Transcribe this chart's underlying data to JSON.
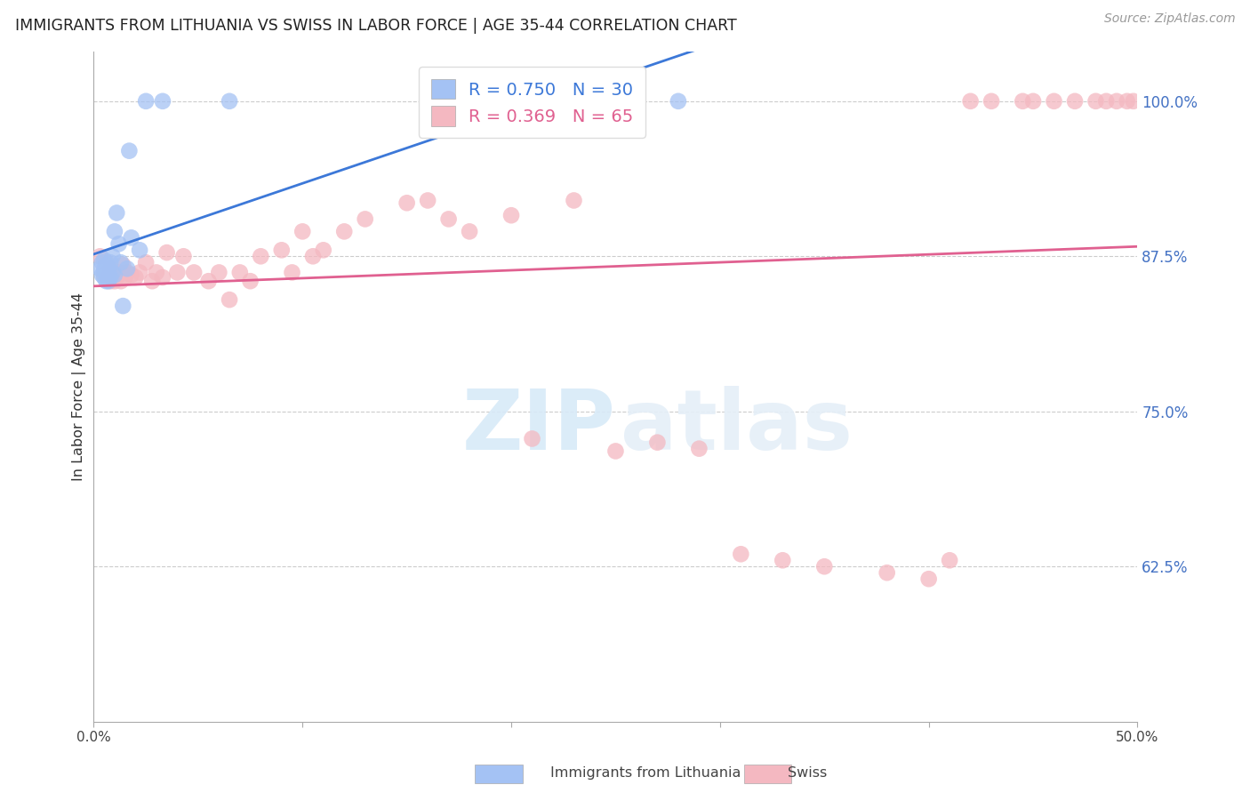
{
  "title": "IMMIGRANTS FROM LITHUANIA VS SWISS IN LABOR FORCE | AGE 35-44 CORRELATION CHART",
  "source": "Source: ZipAtlas.com",
  "ylabel": "In Labor Force | Age 35-44",
  "xlim": [
    0.0,
    0.5
  ],
  "ylim": [
    0.5,
    1.04
  ],
  "yticks_right": [
    0.625,
    0.75,
    0.875,
    1.0
  ],
  "ytick_right_labels": [
    "62.5%",
    "75.0%",
    "87.5%",
    "100.0%"
  ],
  "legend_blue_r": "0.750",
  "legend_blue_n": "30",
  "legend_pink_r": "0.369",
  "legend_pink_n": "65",
  "legend_label_blue": "Immigrants from Lithuania",
  "legend_label_pink": "Swiss",
  "blue_color": "#a4c2f4",
  "pink_color": "#f4b8c1",
  "blue_line_color": "#3c78d8",
  "pink_line_color": "#e06090",
  "right_tick_color": "#4472c4",
  "grid_color": "#cccccc",
  "blue_scatter_x": [
    0.003,
    0.004,
    0.004,
    0.005,
    0.005,
    0.005,
    0.006,
    0.006,
    0.006,
    0.007,
    0.007,
    0.007,
    0.008,
    0.008,
    0.009,
    0.009,
    0.01,
    0.01,
    0.011,
    0.012,
    0.013,
    0.014,
    0.016,
    0.017,
    0.018,
    0.022,
    0.025,
    0.033,
    0.065,
    0.28
  ],
  "blue_scatter_y": [
    0.865,
    0.86,
    0.87,
    0.858,
    0.864,
    0.872,
    0.855,
    0.862,
    0.868,
    0.86,
    0.855,
    0.865,
    0.858,
    0.87,
    0.862,
    0.875,
    0.86,
    0.895,
    0.91,
    0.885,
    0.87,
    0.835,
    0.865,
    0.96,
    0.89,
    0.88,
    1.0,
    1.0,
    1.0,
    1.0
  ],
  "pink_scatter_x": [
    0.003,
    0.005,
    0.006,
    0.007,
    0.008,
    0.008,
    0.009,
    0.01,
    0.011,
    0.012,
    0.013,
    0.014,
    0.015,
    0.016,
    0.018,
    0.02,
    0.022,
    0.025,
    0.028,
    0.03,
    0.033,
    0.035,
    0.04,
    0.043,
    0.048,
    0.055,
    0.06,
    0.065,
    0.07,
    0.075,
    0.08,
    0.09,
    0.095,
    0.1,
    0.105,
    0.11,
    0.12,
    0.13,
    0.15,
    0.16,
    0.17,
    0.18,
    0.2,
    0.21,
    0.23,
    0.25,
    0.27,
    0.29,
    0.31,
    0.33,
    0.35,
    0.38,
    0.4,
    0.41,
    0.42,
    0.43,
    0.445,
    0.45,
    0.46,
    0.47,
    0.48,
    0.485,
    0.49,
    0.495,
    0.498
  ],
  "pink_scatter_y": [
    0.875,
    0.86,
    0.87,
    0.858,
    0.855,
    0.865,
    0.862,
    0.855,
    0.858,
    0.862,
    0.855,
    0.868,
    0.858,
    0.862,
    0.86,
    0.858,
    0.862,
    0.87,
    0.855,
    0.862,
    0.858,
    0.878,
    0.862,
    0.875,
    0.862,
    0.855,
    0.862,
    0.84,
    0.862,
    0.855,
    0.875,
    0.88,
    0.862,
    0.895,
    0.875,
    0.88,
    0.895,
    0.905,
    0.918,
    0.92,
    0.905,
    0.895,
    0.908,
    0.728,
    0.92,
    0.718,
    0.725,
    0.72,
    0.635,
    0.63,
    0.625,
    0.62,
    0.615,
    0.63,
    1.0,
    1.0,
    1.0,
    1.0,
    1.0,
    1.0,
    1.0,
    1.0,
    1.0,
    1.0,
    1.0
  ]
}
